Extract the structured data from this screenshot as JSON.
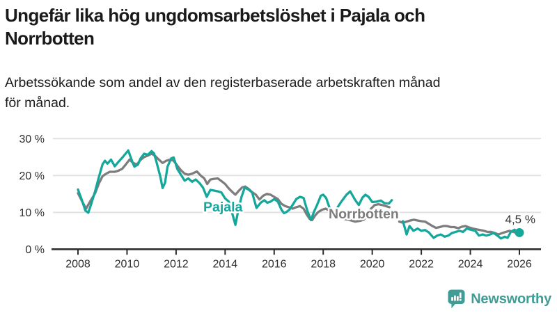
{
  "header": {
    "title_lines": [
      "Ungefär lika hög ungdomsarbetslöshet i Pajala och",
      "Norrbotten"
    ],
    "subtitle_lines": [
      "Arbetssökande som andel av den registerbaserade arbetskraften månad",
      "för månad."
    ]
  },
  "footer": {
    "brand": "Newsworthy"
  },
  "colors": {
    "pajala": "#14a79c",
    "norrbotten": "#7d7d7d",
    "axis": "#2d2d2d",
    "grid": "#e0e0e0",
    "annotation": "#333333",
    "logo": "#3f9d96",
    "background": "#ffffff"
  },
  "chart_data": {
    "type": "line",
    "title": "Ungefär lika hög ungdomsarbetslöshet i Pajala och Norrbotten",
    "subtitle": "Arbetssökande som andel av den registerbaserade arbetskraften månad för månad.",
    "xlabel": "",
    "ylabel": "",
    "ylim": [
      0,
      30
    ],
    "xlim": [
      2007.9,
      2026.9
    ],
    "grid": "horizontal",
    "legend_position": "inline-labels",
    "yticks": [
      {
        "value": 0,
        "label": "0 %"
      },
      {
        "value": 10,
        "label": "10 %"
      },
      {
        "value": 20,
        "label": "20 %"
      },
      {
        "value": 30,
        "label": "30 %"
      }
    ],
    "xticks": [
      {
        "value": 2008,
        "label": "2008"
      },
      {
        "value": 2010,
        "label": "2010"
      },
      {
        "value": 2012,
        "label": "2012"
      },
      {
        "value": 2014,
        "label": "2014"
      },
      {
        "value": 2016,
        "label": "2016"
      },
      {
        "value": 2018,
        "label": "2018"
      },
      {
        "value": 2020,
        "label": "2020"
      },
      {
        "value": 2022,
        "label": "2022"
      },
      {
        "value": 2024,
        "label": "2024"
      },
      {
        "value": 2026,
        "label": "2026"
      }
    ],
    "annotation": {
      "x": 2026.0,
      "y": 4.5,
      "label": "4,5 %"
    },
    "series": [
      {
        "name": "Norrbotten",
        "color": "#7d7d7d",
        "points": [
          [
            2008.0,
            15.2
          ],
          [
            2008.15,
            13.2
          ],
          [
            2008.33,
            11.0
          ],
          [
            2008.5,
            13.0
          ],
          [
            2008.7,
            15.2
          ],
          [
            2008.85,
            17.8
          ],
          [
            2009.0,
            19.8
          ],
          [
            2009.15,
            20.5
          ],
          [
            2009.3,
            21.0
          ],
          [
            2009.5,
            21.0
          ],
          [
            2009.65,
            21.3
          ],
          [
            2009.8,
            21.8
          ],
          [
            2009.95,
            23.0
          ],
          [
            2010.1,
            24.3
          ],
          [
            2010.25,
            23.4
          ],
          [
            2010.4,
            23.0
          ],
          [
            2010.55,
            24.2
          ],
          [
            2010.7,
            25.0
          ],
          [
            2010.85,
            25.4
          ],
          [
            2011.0,
            25.9
          ],
          [
            2011.15,
            25.3
          ],
          [
            2011.3,
            24.3
          ],
          [
            2011.45,
            23.4
          ],
          [
            2011.6,
            24.0
          ],
          [
            2011.75,
            24.3
          ],
          [
            2011.9,
            24.0
          ],
          [
            2012.05,
            22.7
          ],
          [
            2012.2,
            21.4
          ],
          [
            2012.35,
            20.5
          ],
          [
            2012.5,
            20.2
          ],
          [
            2012.65,
            20.5
          ],
          [
            2012.85,
            21.1
          ],
          [
            2013.0,
            20.0
          ],
          [
            2013.15,
            19.2
          ],
          [
            2013.27,
            17.7
          ],
          [
            2013.4,
            18.9
          ],
          [
            2013.55,
            19.1
          ],
          [
            2013.7,
            19.2
          ],
          [
            2013.85,
            18.5
          ],
          [
            2014.0,
            17.7
          ],
          [
            2014.15,
            16.5
          ],
          [
            2014.3,
            15.5
          ],
          [
            2014.42,
            14.8
          ],
          [
            2014.55,
            15.8
          ],
          [
            2014.7,
            16.8
          ],
          [
            2014.82,
            17.0
          ],
          [
            2014.95,
            16.4
          ],
          [
            2015.1,
            15.5
          ],
          [
            2015.25,
            14.8
          ],
          [
            2015.4,
            13.5
          ],
          [
            2015.55,
            14.5
          ],
          [
            2015.7,
            15.0
          ],
          [
            2015.85,
            14.8
          ],
          [
            2016.0,
            14.2
          ],
          [
            2016.15,
            13.6
          ],
          [
            2016.3,
            12.3
          ],
          [
            2016.45,
            11.7
          ],
          [
            2016.6,
            11.4
          ],
          [
            2016.75,
            11.0
          ],
          [
            2016.9,
            11.4
          ],
          [
            2017.05,
            11.7
          ],
          [
            2017.2,
            11.0
          ],
          [
            2017.32,
            9.5
          ],
          [
            2017.45,
            8.2
          ],
          [
            2017.55,
            7.9
          ],
          [
            2017.68,
            9.2
          ],
          [
            2017.8,
            10.1
          ],
          [
            2017.95,
            10.7
          ],
          [
            2018.1,
            11.0
          ],
          [
            2018.25,
            10.5
          ],
          [
            2018.4,
            10.1
          ],
          [
            2018.5,
            9.2
          ],
          [
            2018.65,
            8.7
          ],
          [
            2018.8,
            8.3
          ],
          [
            2019.0,
            8.0
          ],
          [
            2019.15,
            7.8
          ],
          [
            2019.3,
            7.5
          ],
          [
            2019.5,
            7.7
          ],
          [
            2019.65,
            8.0
          ],
          [
            2019.8,
            9.0
          ],
          [
            2019.95,
            11.0
          ],
          [
            2020.1,
            12.0
          ],
          [
            2020.25,
            12.2
          ],
          [
            2020.4,
            12.0
          ],
          [
            2020.55,
            11.7
          ],
          [
            2020.7,
            11.4
          ],
          null,
          [
            2021.1,
            7.5
          ],
          [
            2021.25,
            7.2
          ],
          [
            2021.4,
            7.5
          ],
          [
            2021.55,
            7.8
          ],
          [
            2021.7,
            8.0
          ],
          [
            2021.85,
            7.8
          ],
          [
            2022.0,
            7.6
          ],
          [
            2022.15,
            7.5
          ],
          [
            2022.3,
            6.9
          ],
          [
            2022.45,
            6.3
          ],
          [
            2022.6,
            5.8
          ],
          [
            2022.75,
            6.0
          ],
          [
            2022.9,
            6.3
          ],
          [
            2023.05,
            6.3
          ],
          [
            2023.2,
            6.0
          ],
          [
            2023.35,
            6.0
          ],
          [
            2023.5,
            5.7
          ],
          [
            2023.65,
            6.1
          ],
          [
            2023.8,
            6.3
          ],
          [
            2023.95,
            5.9
          ],
          [
            2024.1,
            5.6
          ],
          [
            2024.25,
            5.4
          ],
          [
            2024.4,
            5.2
          ],
          [
            2024.55,
            5.0
          ],
          [
            2024.7,
            4.7
          ],
          [
            2024.85,
            4.7
          ],
          [
            2025.0,
            4.4
          ],
          [
            2025.15,
            4.0
          ],
          [
            2025.3,
            4.4
          ],
          [
            2025.45,
            4.7
          ],
          [
            2025.6,
            5.0
          ],
          [
            2025.75,
            4.7
          ],
          [
            2025.9,
            4.4
          ]
        ]
      },
      {
        "name": "Pajala",
        "color": "#14a79c",
        "points": [
          [
            2008.0,
            16.2
          ],
          [
            2008.15,
            13.5
          ],
          [
            2008.3,
            10.5
          ],
          [
            2008.42,
            9.9
          ],
          [
            2008.55,
            12.5
          ],
          [
            2008.7,
            15.8
          ],
          [
            2008.85,
            19.5
          ],
          [
            2009.0,
            23.0
          ],
          [
            2009.1,
            24.0
          ],
          [
            2009.2,
            23.2
          ],
          [
            2009.35,
            24.3
          ],
          [
            2009.5,
            22.5
          ],
          [
            2009.65,
            23.7
          ],
          [
            2009.8,
            24.8
          ],
          [
            2009.95,
            26.0
          ],
          [
            2010.05,
            26.8
          ],
          [
            2010.2,
            24.0
          ],
          [
            2010.3,
            22.4
          ],
          [
            2010.45,
            23.0
          ],
          [
            2010.55,
            24.6
          ],
          [
            2010.7,
            25.9
          ],
          [
            2010.85,
            25.6
          ],
          [
            2011.0,
            26.6
          ],
          [
            2011.1,
            26.0
          ],
          [
            2011.2,
            23.7
          ],
          [
            2011.35,
            19.9
          ],
          [
            2011.45,
            16.6
          ],
          [
            2011.55,
            18.0
          ],
          [
            2011.65,
            22.4
          ],
          [
            2011.8,
            24.6
          ],
          [
            2011.9,
            24.9
          ],
          [
            2012.05,
            21.8
          ],
          [
            2012.2,
            20.2
          ],
          [
            2012.35,
            18.6
          ],
          [
            2012.5,
            19.2
          ],
          [
            2012.65,
            18.3
          ],
          [
            2012.8,
            18.9
          ],
          [
            2012.95,
            18.0
          ],
          [
            2013.1,
            16.7
          ],
          [
            2013.25,
            14.2
          ],
          [
            2013.4,
            16.1
          ],
          [
            2013.55,
            15.9
          ],
          [
            2013.7,
            15.7
          ],
          [
            2013.85,
            15.4
          ],
          [
            2014.0,
            13.8
          ],
          [
            2014.15,
            12.9
          ],
          [
            2014.3,
            9.5
          ],
          [
            2014.42,
            6.6
          ],
          [
            2014.55,
            11.0
          ],
          [
            2014.67,
            14.2
          ],
          [
            2014.8,
            16.7
          ],
          [
            2014.95,
            16.2
          ],
          [
            2015.1,
            15.4
          ],
          [
            2015.28,
            11.2
          ],
          [
            2015.45,
            12.6
          ],
          [
            2015.6,
            13.3
          ],
          [
            2015.72,
            12.6
          ],
          [
            2015.85,
            12.9
          ],
          [
            2016.0,
            13.6
          ],
          [
            2016.15,
            12.9
          ],
          [
            2016.3,
            10.7
          ],
          [
            2016.4,
            9.8
          ],
          [
            2016.5,
            10.1
          ],
          [
            2016.62,
            10.7
          ],
          [
            2016.75,
            12.0
          ],
          [
            2016.9,
            13.6
          ],
          [
            2017.05,
            14.2
          ],
          [
            2017.2,
            13.9
          ],
          [
            2017.35,
            10.5
          ],
          [
            2017.5,
            7.9
          ],
          [
            2017.62,
            10.1
          ],
          [
            2017.75,
            12.0
          ],
          [
            2017.9,
            14.5
          ],
          [
            2018.0,
            14.8
          ],
          [
            2018.12,
            13.9
          ],
          [
            2018.25,
            11.4
          ],
          [
            2018.38,
            10.0
          ],
          [
            2018.55,
            11.0
          ],
          [
            2018.75,
            13.0
          ],
          [
            2018.95,
            14.8
          ],
          [
            2019.1,
            15.7
          ],
          [
            2019.3,
            13.4
          ],
          [
            2019.45,
            12.0
          ],
          [
            2019.6,
            14.0
          ],
          [
            2019.72,
            14.8
          ],
          [
            2019.85,
            14.2
          ],
          [
            2020.0,
            12.8
          ],
          [
            2020.18,
            12.9
          ],
          [
            2020.35,
            13.2
          ],
          [
            2020.5,
            12.5
          ],
          [
            2020.68,
            12.4
          ],
          [
            2020.8,
            13.3
          ],
          null,
          [
            2021.25,
            7.6
          ],
          [
            2021.4,
            4.0
          ],
          [
            2021.52,
            6.3
          ],
          [
            2021.68,
            5.0
          ],
          [
            2021.85,
            5.6
          ],
          [
            2022.0,
            5.0
          ],
          [
            2022.15,
            5.2
          ],
          [
            2022.3,
            4.6
          ],
          [
            2022.5,
            3.1
          ],
          [
            2022.65,
            3.7
          ],
          [
            2022.8,
            4.0
          ],
          [
            2022.95,
            3.4
          ],
          [
            2023.1,
            3.7
          ],
          [
            2023.25,
            4.4
          ],
          [
            2023.4,
            4.7
          ],
          [
            2023.55,
            5.0
          ],
          [
            2023.7,
            4.7
          ],
          [
            2023.85,
            5.6
          ],
          [
            2024.0,
            5.3
          ],
          [
            2024.2,
            5.0
          ],
          [
            2024.35,
            3.7
          ],
          [
            2024.5,
            4.0
          ],
          [
            2024.65,
            3.7
          ],
          [
            2024.8,
            4.0
          ],
          [
            2024.95,
            4.4
          ],
          [
            2025.1,
            3.7
          ],
          [
            2025.25,
            2.9
          ],
          [
            2025.4,
            3.4
          ],
          [
            2025.52,
            3.1
          ],
          [
            2025.65,
            4.7
          ],
          [
            2025.8,
            5.3
          ],
          [
            2025.9,
            4.8
          ],
          [
            2026.0,
            4.5
          ]
        ]
      }
    ]
  }
}
